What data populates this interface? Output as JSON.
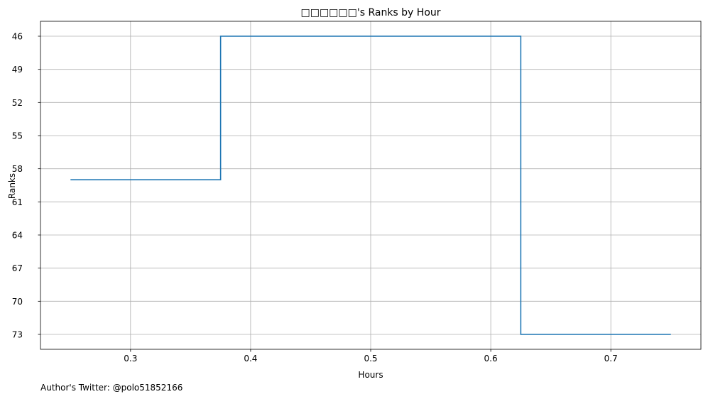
{
  "chart_data": {
    "type": "line",
    "drawstyle": "steps-post",
    "title": "□□□□□□'s Ranks by Hour",
    "xlabel": "Hours",
    "ylabel": "Ranks",
    "xlim": [
      0.225,
      0.775
    ],
    "ylim": [
      74.35,
      44.65
    ],
    "y_inverted": true,
    "grid": true,
    "x_ticks": [
      0.3,
      0.4,
      0.5,
      0.6,
      0.7
    ],
    "x_tick_labels": [
      "0.3",
      "0.4",
      "0.5",
      "0.6",
      "0.7"
    ],
    "y_ticks": [
      46,
      49,
      52,
      55,
      58,
      61,
      64,
      67,
      70,
      73
    ],
    "y_tick_labels": [
      "46",
      "49",
      "52",
      "55",
      "58",
      "61",
      "64",
      "67",
      "70",
      "73"
    ],
    "series": [
      {
        "x": [
          0.25,
          0.375,
          0.625,
          0.75
        ],
        "y": [
          59,
          46,
          73,
          73
        ],
        "color": "#1f77b4"
      }
    ]
  },
  "footer": {
    "text": "Author's Twitter: @polo51852166"
  }
}
